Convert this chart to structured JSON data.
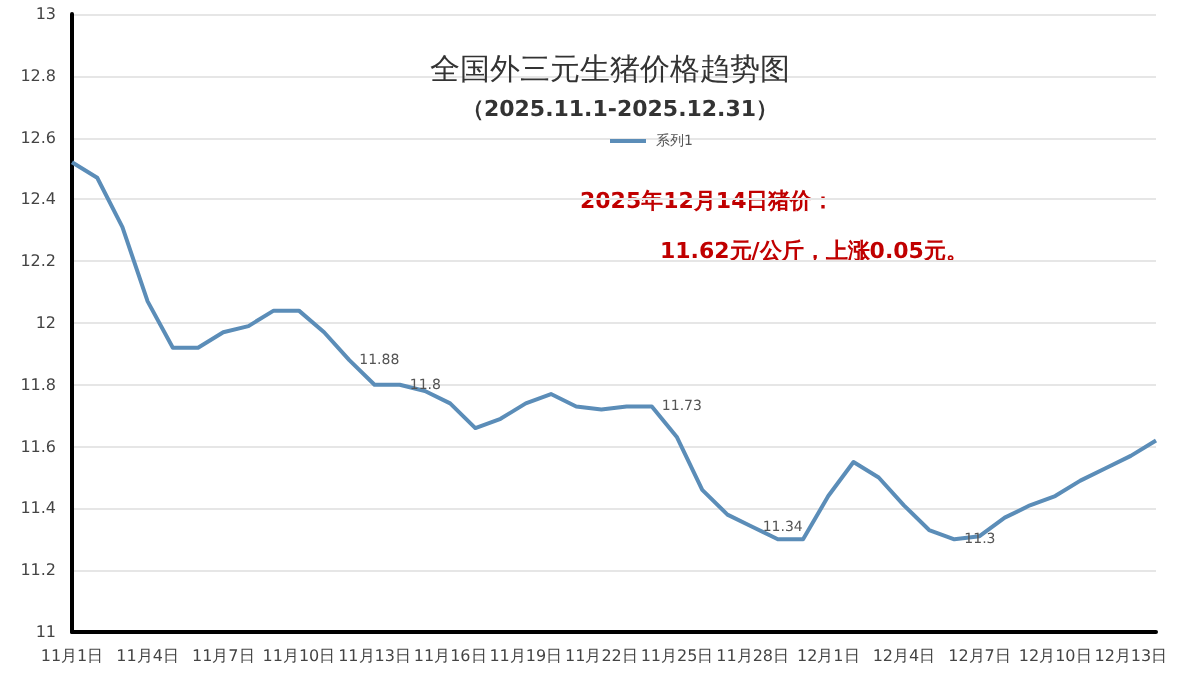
{
  "chart_data": {
    "type": "line",
    "title": "全国外三元生猪价格趋势图",
    "subtitle": "（2025.11.1-2025.12.31）",
    "annotations": [
      "2025年12月14日猪价：",
      "11.62元/公斤，上涨0.05元。"
    ],
    "categories": [
      "11月1日",
      null,
      null,
      "11月4日",
      null,
      null,
      "11月7日",
      null,
      null,
      "11月10日",
      null,
      null,
      "11月13日",
      null,
      null,
      "11月16日",
      null,
      null,
      "11月19日",
      null,
      null,
      "11月22日",
      null,
      null,
      "11月25日",
      null,
      null,
      "11月28日",
      null,
      null,
      "12月1日",
      null,
      null,
      "12月4日",
      null,
      null,
      "12月7日",
      null,
      null,
      "12月10日",
      null,
      null,
      "12月13日",
      null
    ],
    "series": [
      {
        "name": "系列1",
        "color": "#5b8db8",
        "values": [
          12.52,
          12.47,
          12.31,
          12.07,
          11.92,
          11.92,
          11.97,
          11.99,
          12.04,
          12.04,
          11.97,
          11.88,
          11.8,
          11.8,
          11.78,
          11.74,
          11.66,
          11.69,
          11.74,
          11.77,
          11.73,
          11.72,
          11.73,
          11.73,
          11.63,
          11.46,
          11.38,
          11.34,
          11.3,
          11.3,
          11.44,
          11.55,
          11.5,
          11.41,
          11.33,
          11.3,
          11.31,
          11.37,
          11.41,
          11.44,
          11.49,
          11.53,
          11.57,
          11.62
        ],
        "value_labels": [
          null,
          null,
          null,
          null,
          null,
          null,
          null,
          null,
          null,
          null,
          null,
          "11.88",
          null,
          "11.8",
          null,
          null,
          null,
          null,
          null,
          null,
          null,
          null,
          null,
          "11.73",
          null,
          null,
          null,
          "11.34",
          null,
          null,
          null,
          null,
          null,
          null,
          null,
          "11.3",
          null,
          null,
          null,
          null,
          null,
          null,
          null,
          null
        ]
      }
    ],
    "ylim": [
      11,
      13
    ],
    "yticks": [
      11,
      11.2,
      11.4,
      11.6,
      11.8,
      12,
      12.2,
      12.4,
      12.6,
      12.8,
      13
    ],
    "grid": "y",
    "legend": "top",
    "marker": "none",
    "line_style": "solid"
  }
}
